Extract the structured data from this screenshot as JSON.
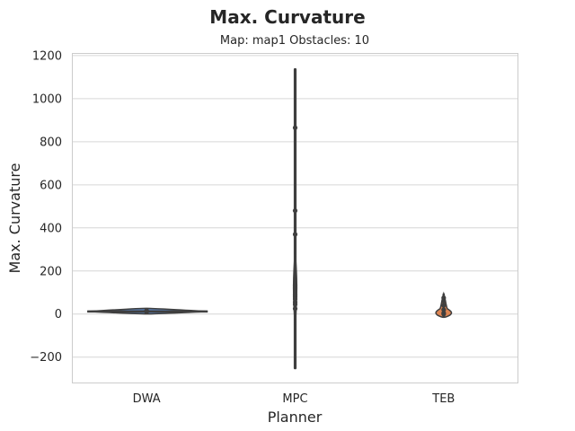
{
  "chart_data": {
    "type": "violin",
    "title": "Max. Curvature",
    "subtitle": "Map: map1 Obstacles: 10",
    "xlabel": "Planner",
    "ylabel": "Max. Curvature",
    "categories": [
      "DWA",
      "MPC",
      "TEB"
    ],
    "ylim": [
      -320,
      1210
    ],
    "yticks": [
      -200,
      0,
      200,
      400,
      600,
      800,
      1000,
      1200
    ],
    "ytick_labels": [
      "−200",
      "0",
      "200",
      "400",
      "600",
      "800",
      "1000",
      "1200"
    ],
    "grid": "horizontal",
    "series": [
      {
        "category": "DWA",
        "extent": [
          8,
          18
        ],
        "points": [
          10,
          12,
          14,
          16
        ],
        "color": "#5a7fb5"
      },
      {
        "category": "MPC",
        "extent": [
          -250,
          1135
        ],
        "points": [
          25,
          45,
          55,
          70,
          80,
          90,
          120,
          135,
          370,
          480,
          865
        ],
        "color": "#ffffff"
      },
      {
        "category": "TEB",
        "extent": [
          -15,
          95
        ],
        "points": [
          0,
          5,
          20,
          40,
          60,
          75
        ],
        "color": "#dd8452"
      }
    ]
  }
}
